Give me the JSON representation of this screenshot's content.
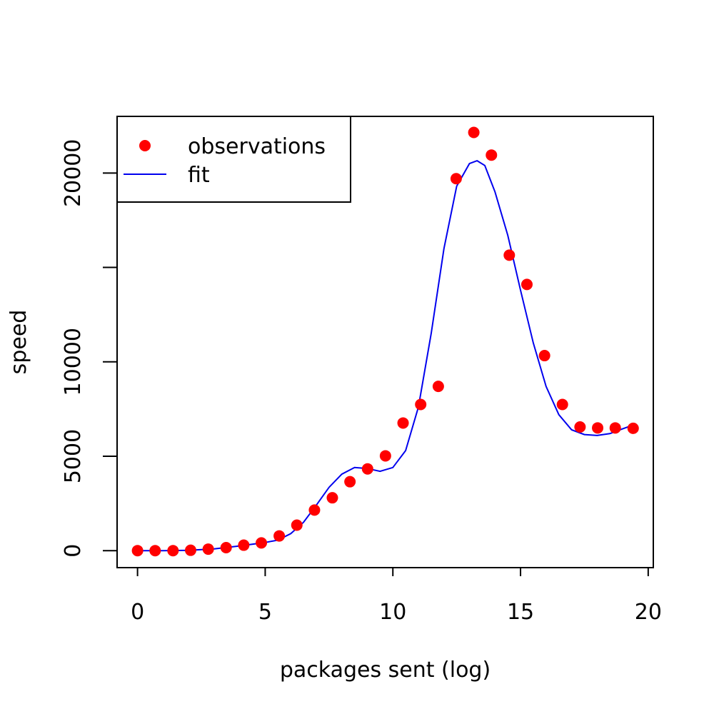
{
  "chart_data": {
    "type": "scatter",
    "title": "",
    "xlabel": "packages sent (log)",
    "ylabel": "speed",
    "xlim": [
      -0.8,
      20.2
    ],
    "ylim": [
      -900,
      23000
    ],
    "x_ticks": [
      0,
      5,
      10,
      15,
      20
    ],
    "y_ticks": [
      0,
      5000,
      10000,
      15000,
      20000
    ],
    "y_tick_labels": [
      "0",
      "5000",
      "10000",
      "",
      "20000"
    ],
    "legend_position": "top-left",
    "grid": false,
    "series": [
      {
        "name": "observations",
        "kind": "points",
        "color": "#ff0000",
        "x": [
          0.0,
          0.69,
          1.39,
          2.08,
          2.77,
          3.47,
          4.16,
          4.85,
          5.55,
          6.24,
          6.93,
          7.63,
          8.32,
          9.01,
          9.71,
          10.4,
          11.09,
          11.78,
          12.48,
          13.17,
          13.86,
          14.56,
          15.25,
          15.94,
          16.64,
          17.33,
          18.02,
          18.71,
          19.41
        ],
        "y": [
          0,
          0,
          0,
          20,
          80,
          160,
          290,
          410,
          780,
          1350,
          2150,
          2800,
          3650,
          4330,
          5020,
          6760,
          7740,
          8700,
          19700,
          22150,
          20950,
          15650,
          14100,
          10330,
          7740,
          6550,
          6500,
          6500,
          6480
        ]
      },
      {
        "name": "fit",
        "kind": "line",
        "color": "#0000ee",
        "x": [
          0,
          1,
          2,
          3,
          4,
          5,
          5.5,
          6,
          6.5,
          7,
          7.5,
          8,
          8.5,
          9,
          9.5,
          10,
          10.5,
          11,
          11.5,
          12,
          12.5,
          13,
          13.3,
          13.6,
          14,
          14.5,
          15,
          15.5,
          16,
          16.5,
          17,
          17.5,
          18,
          18.5,
          19,
          19.4
        ],
        "y": [
          0,
          0,
          20,
          90,
          250,
          430,
          560,
          900,
          1500,
          2400,
          3350,
          4050,
          4400,
          4350,
          4200,
          4400,
          5300,
          7600,
          11500,
          16000,
          19300,
          20500,
          20650,
          20400,
          19000,
          16700,
          13800,
          11000,
          8700,
          7200,
          6400,
          6150,
          6100,
          6200,
          6450,
          6650
        ]
      }
    ]
  }
}
